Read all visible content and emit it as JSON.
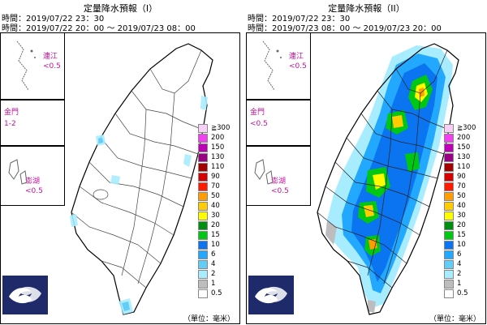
{
  "panels": [
    {
      "title": "定量降水預報（I）",
      "issue_text": "時間：2019/07/22 23：30",
      "valid_text": "時間：2019/07/22 20：00 ～ 2019/07/23 08：00",
      "insets": {
        "matsu": {
          "name": "連江",
          "value": "<0.5"
        },
        "kinmen": {
          "name": "金門",
          "value": "1-2"
        },
        "penghu": {
          "name": "澎湖",
          "value": "<0.5"
        }
      },
      "unit_text": "（單位：毫米）"
    },
    {
      "title": "定量降水預報（II）",
      "issue_text": "時間：2019/07/22 23：30",
      "valid_text": "時間：2019/07/23 08：00 ～ 2019/07/23 20：00",
      "insets": {
        "matsu": {
          "name": "連江",
          "value": "<0.5"
        },
        "kinmen": {
          "name": "金門",
          "value": "<0.5"
        },
        "penghu": {
          "name": "澎湖",
          "value": "<0.5"
        }
      },
      "unit_text": "（單位：毫米）"
    }
  ],
  "legend": [
    {
      "label": "≧300",
      "color": "#f9d0f5"
    },
    {
      "label": "200",
      "color": "#f23ff0"
    },
    {
      "label": "150",
      "color": "#bb00b5"
    },
    {
      "label": "130",
      "color": "#9a0083"
    },
    {
      "label": "110",
      "color": "#a50000"
    },
    {
      "label": "90",
      "color": "#d60000"
    },
    {
      "label": "70",
      "color": "#ff1a00"
    },
    {
      "label": "50",
      "color": "#ff9d00"
    },
    {
      "label": "40",
      "color": "#ffcc00"
    },
    {
      "label": "30",
      "color": "#fffc00"
    },
    {
      "label": "20",
      "color": "#008e10"
    },
    {
      "label": "15",
      "color": "#00c614"
    },
    {
      "label": "10",
      "color": "#0a74f1"
    },
    {
      "label": "6",
      "color": "#22a9ff"
    },
    {
      "label": "4",
      "color": "#62cdf9"
    },
    {
      "label": "2",
      "color": "#a8ecff"
    },
    {
      "label": "1",
      "color": "#bdbdbd"
    },
    {
      "label": "0.5",
      "color": "#ffffff"
    }
  ]
}
